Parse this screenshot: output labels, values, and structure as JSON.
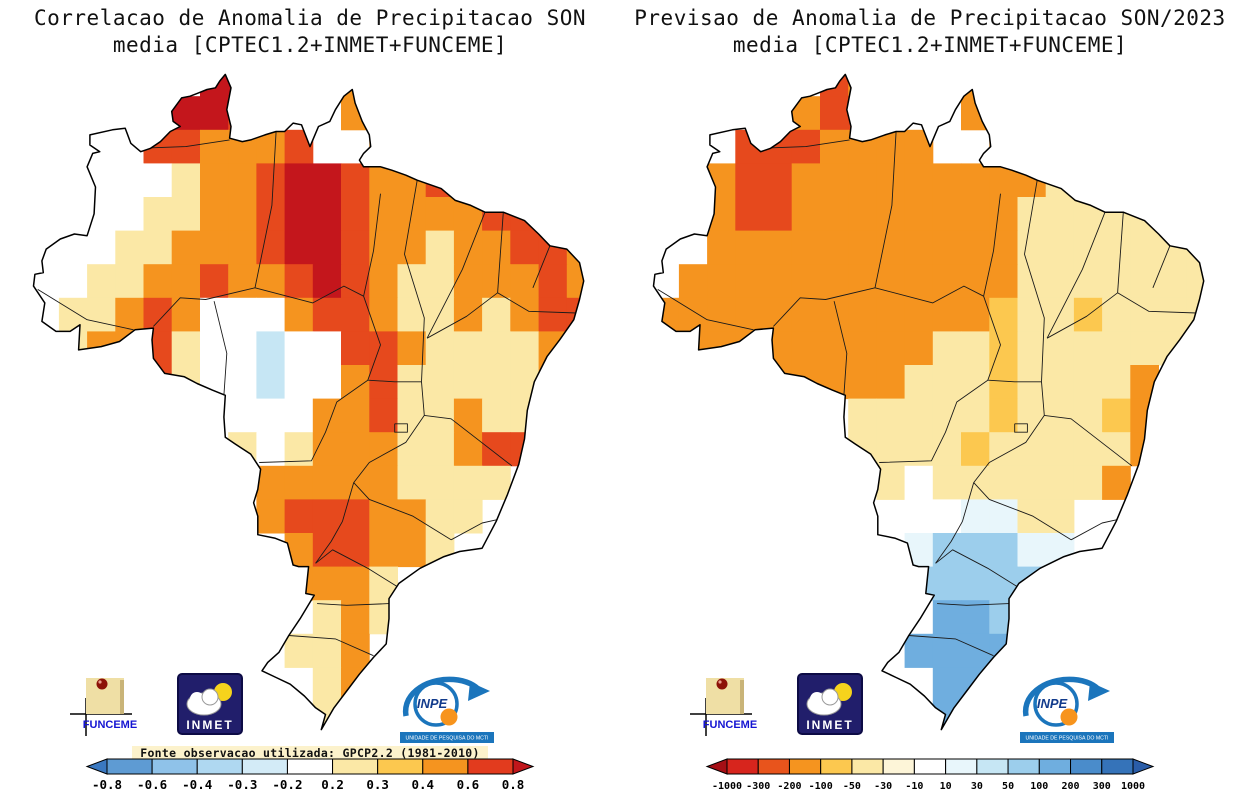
{
  "left": {
    "title_line1": "Correlacao de Anomalia de Precipitacao SON",
    "title_line2": "media [CPTEC1.2+INMET+FUNCEME]",
    "source_note": "Fonte observacao utilizada: GPCP2.2 (1981-2010)",
    "colorbar": {
      "ticks": [
        "-0.8",
        "-0.6",
        "-0.4",
        "-0.3",
        "-0.2",
        "0.2",
        "0.3",
        "0.4",
        "0.6",
        "0.8"
      ],
      "segment_colors": [
        "#5E9BD3",
        "#8FC2E9",
        "#AFD8F1",
        "#D3EBF7",
        "#FFFFFF",
        "#FBE8A6",
        "#FCC84F",
        "#F5941F",
        "#E23B1E"
      ],
      "arrow_left_color": "#3A78C0",
      "arrow_right_color": "#C0161B"
    },
    "grid_rows": [
      "......DD...O........",
      ".....DDRR..OO.......",
      "....RROOOR..OO......",
      "...WWYOORDDROORO....",
      "..WWYYOORDDROOOORRO.",
      "..WYYOOORDDROOYOORRO",
      ".WYYOOROORDROYYOOORO",
      "WYYOROWWWORROYYOYORR",
      "WYOORYWWCWWRROYYYYOR",
      ".YOORYWWCWWORYYYYYO.",
      "..OORYWWWWOORYYOYYO.",
      ".......YWYOOOYYORR..",
      "........OOOOOYYYY...",
      "........ORRROOYY....",
      ".........ORROOY.....",
      ".........OOOY.......",
      "..........YOY.......",
      ".........YYO........",
      "..........YO........",
      "..........Y........."
    ]
  },
  "right": {
    "title_line1": "Previsao de Anomalia de Precipitacao SON/2023",
    "title_line2": "media [CPTEC1.2+INMET+FUNCEME]",
    "colorbar": {
      "ticks": [
        "-1000",
        "-300",
        "-200",
        "-100",
        "-50",
        "-30",
        "-10",
        "10",
        "30",
        "50",
        "100",
        "200",
        "300",
        "1000"
      ],
      "segment_colors": [
        "#D7251D",
        "#E8541C",
        "#F5941F",
        "#FCC84F",
        "#FBE8A6",
        "#FDF5D8",
        "#FFFFFF",
        "#E8F6FB",
        "#C6E6F4",
        "#9CCEEC",
        "#6FAEDF",
        "#4A8CCB",
        "#3573B9"
      ],
      "arrow_left_color": "#A50F15",
      "arrow_right_color": "#2A5DA8"
    },
    "grid_rows": [
      "......RO...O........",
      ".....ORRO..OO.......",
      "...RRROOOO..OO......",
      "..ORROOOOOOOOOY....",
      "..ORROOOOOOOOYYYYYY.",
      "..OOOOOOOOOOOYYYYYYY",
      ".OOOOOOOOOOOOYYYYYYY",
      "OOOOOOOOOOOOGYYGYYYY",
      "OOOOOOOOOOYYGYYYYYY.",
      ".OOOOOOOOYYYGYYYYO..",
      ".......YYYYYGYYYGO..",
      ".......YYYYGYYYYYO..",
      "........YWYYYYYYO...",
      ".........WWPPYY.....",
      ".........PLLLPP.....",
      ".........LLLLL......",
      "..........BBL.......",
      ".........BBBB.......",
      "..........BB........",
      "..........B........."
    ]
  },
  "map": {
    "palette": {
      "W": "#FFFFFF",
      "C": "#C6E6F4",
      "Y": "#FBE8A6",
      "G": "#FCC84F",
      "O": "#F5941F",
      "R": "#E6491D",
      "D": "#C4161C",
      "P": "#E8F6FB",
      "L": "#9CCEEC",
      "B": "#6FAEDF"
    },
    "grid": {
      "lon0": -74,
      "lat0": 6,
      "cell_deg": 2
    },
    "bounds": {
      "lon_min": -74.4,
      "lon_max": -34.0,
      "lat_max": 5.8,
      "lat_min": -34.2
    },
    "outline": [
      [
        -60.2,
        5.3
      ],
      [
        -59.8,
        4.5
      ],
      [
        -60.1,
        3.2
      ],
      [
        -59.8,
        2.2
      ],
      [
        -59.9,
        1.5
      ],
      [
        -59.0,
        1.3
      ],
      [
        -58.4,
        1.4
      ],
      [
        -57.4,
        1.7
      ],
      [
        -56.6,
        1.9
      ],
      [
        -56.0,
        1.9
      ],
      [
        -55.4,
        2.4
      ],
      [
        -54.8,
        2.3
      ],
      [
        -54.2,
        1.0
      ],
      [
        -53.6,
        2.2
      ],
      [
        -52.8,
        2.5
      ],
      [
        -52.4,
        3.2
      ],
      [
        -51.8,
        4.0
      ],
      [
        -51.2,
        4.4
      ],
      [
        -51.0,
        3.6
      ],
      [
        -50.5,
        2.5
      ],
      [
        -50.0,
        1.7
      ],
      [
        -49.9,
        1.0
      ],
      [
        -50.4,
        0.6
      ],
      [
        -50.7,
        0.2
      ],
      [
        -50.4,
        -0.2
      ],
      [
        -49.2,
        -0.2
      ],
      [
        -48.4,
        -0.4
      ],
      [
        -47.4,
        -0.7
      ],
      [
        -46.6,
        -1.0
      ],
      [
        -44.9,
        -1.5
      ],
      [
        -43.9,
        -2.2
      ],
      [
        -42.8,
        -2.5
      ],
      [
        -41.8,
        -2.9
      ],
      [
        -40.5,
        -2.9
      ],
      [
        -39.0,
        -3.4
      ],
      [
        -38.0,
        -4.2
      ],
      [
        -37.2,
        -4.9
      ],
      [
        -36.0,
        -5.1
      ],
      [
        -35.1,
        -5.9
      ],
      [
        -34.8,
        -7.0
      ],
      [
        -35.1,
        -8.1
      ],
      [
        -35.5,
        -9.3
      ],
      [
        -36.5,
        -10.5
      ],
      [
        -37.4,
        -11.5
      ],
      [
        -38.3,
        -13.0
      ],
      [
        -38.8,
        -14.7
      ],
      [
        -39.0,
        -16.4
      ],
      [
        -39.4,
        -17.9
      ],
      [
        -40.2,
        -19.7
      ],
      [
        -41.0,
        -21.3
      ],
      [
        -42.0,
        -22.9
      ],
      [
        -43.6,
        -23.1
      ],
      [
        -44.7,
        -23.4
      ],
      [
        -46.4,
        -24.1
      ],
      [
        -47.9,
        -25.0
      ],
      [
        -48.6,
        -25.9
      ],
      [
        -48.6,
        -27.1
      ],
      [
        -48.8,
        -28.6
      ],
      [
        -49.7,
        -29.4
      ],
      [
        -50.7,
        -30.4
      ],
      [
        -51.6,
        -31.4
      ],
      [
        -52.5,
        -32.4
      ],
      [
        -53.4,
        -33.7
      ],
      [
        -53.1,
        -32.8
      ],
      [
        -53.8,
        -32.4
      ],
      [
        -54.6,
        -31.7
      ],
      [
        -55.6,
        -31.0
      ],
      [
        -56.6,
        -30.6
      ],
      [
        -57.6,
        -30.2
      ],
      [
        -57.2,
        -29.7
      ],
      [
        -56.4,
        -29.1
      ],
      [
        -55.7,
        -28.1
      ],
      [
        -54.9,
        -27.1
      ],
      [
        -53.9,
        -25.7
      ],
      [
        -54.5,
        -25.6
      ],
      [
        -54.4,
        -24.8
      ],
      [
        -54.3,
        -24.0
      ],
      [
        -55.0,
        -24.0
      ],
      [
        -55.4,
        -23.9
      ],
      [
        -55.8,
        -22.6
      ],
      [
        -56.7,
        -22.3
      ],
      [
        -57.9,
        -22.1
      ],
      [
        -57.9,
        -21.0
      ],
      [
        -58.2,
        -20.2
      ],
      [
        -57.9,
        -19.4
      ],
      [
        -57.7,
        -18.2
      ],
      [
        -58.4,
        -17.3
      ],
      [
        -59.5,
        -16.7
      ],
      [
        -60.2,
        -16.3
      ],
      [
        -60.3,
        -15.1
      ],
      [
        -60.2,
        -13.8
      ],
      [
        -61.1,
        -13.5
      ],
      [
        -62.2,
        -13.1
      ],
      [
        -63.1,
        -12.7
      ],
      [
        -64.5,
        -12.5
      ],
      [
        -65.3,
        -11.6
      ],
      [
        -65.4,
        -10.5
      ],
      [
        -65.3,
        -9.8
      ],
      [
        -66.6,
        -9.9
      ],
      [
        -67.7,
        -10.6
      ],
      [
        -69.0,
        -10.9
      ],
      [
        -70.6,
        -11.1
      ],
      [
        -70.5,
        -9.6
      ],
      [
        -71.2,
        -10.0
      ],
      [
        -72.2,
        -10.0
      ],
      [
        -73.2,
        -9.4
      ],
      [
        -73.0,
        -8.3
      ],
      [
        -73.8,
        -7.3
      ],
      [
        -73.7,
        -6.6
      ],
      [
        -73.1,
        -6.5
      ],
      [
        -73.2,
        -5.8
      ],
      [
        -72.9,
        -5.1
      ],
      [
        -71.9,
        -4.5
      ],
      [
        -70.9,
        -4.2
      ],
      [
        -70.0,
        -4.3
      ],
      [
        -69.5,
        -3.0
      ],
      [
        -69.4,
        -1.4
      ],
      [
        -70.0,
        -0.2
      ],
      [
        -69.6,
        0.6
      ],
      [
        -69.1,
        0.7
      ],
      [
        -69.8,
        1.1
      ],
      [
        -69.8,
        1.7
      ],
      [
        -68.2,
        2.0
      ],
      [
        -67.3,
        2.1
      ],
      [
        -66.9,
        1.2
      ],
      [
        -66.2,
        0.7
      ],
      [
        -65.5,
        0.9
      ],
      [
        -64.8,
        1.3
      ],
      [
        -64.1,
        1.9
      ],
      [
        -63.4,
        2.2
      ],
      [
        -63.9,
        2.5
      ],
      [
        -64.0,
        3.1
      ],
      [
        -63.3,
        3.9
      ],
      [
        -62.7,
        4.0
      ],
      [
        -62.1,
        4.2
      ],
      [
        -61.5,
        4.4
      ],
      [
        -60.9,
        4.5
      ],
      [
        -60.6,
        4.9
      ]
    ],
    "state_lines": [
      [
        [
          -66.4,
          0.9
        ],
        [
          -63.0,
          1.0
        ],
        [
          -59.9,
          1.4
        ]
      ],
      [
        [
          -56.6,
          1.9
        ],
        [
          -56.9,
          -2.5
        ],
        [
          -58.1,
          -7.4
        ]
      ],
      [
        [
          -58.1,
          -7.4
        ],
        [
          -61.6,
          -8.1
        ],
        [
          -63.4,
          -8.0
        ],
        [
          -65.3,
          -9.7
        ]
      ],
      [
        [
          -61.0,
          -8.2
        ],
        [
          -60.1,
          -11.3
        ],
        [
          -60.3,
          -13.8
        ]
      ],
      [
        [
          -58.1,
          -7.4
        ],
        [
          -54.0,
          -8.3
        ],
        [
          -51.8,
          -7.3
        ],
        [
          -50.4,
          -7.9
        ]
      ],
      [
        [
          -46.6,
          -1.0
        ],
        [
          -47.5,
          -5.4
        ],
        [
          -46.1,
          -9.2
        ],
        [
          -46.3,
          -13.0
        ]
      ],
      [
        [
          -50.4,
          -7.9
        ],
        [
          -49.7,
          -5.2
        ],
        [
          -49.2,
          -1.8
        ]
      ],
      [
        [
          -50.4,
          -7.9
        ],
        [
          -49.2,
          -10.8
        ],
        [
          -50.1,
          -12.9
        ]
      ],
      [
        [
          -41.8,
          -2.9
        ],
        [
          -43.4,
          -6.3
        ],
        [
          -45.9,
          -10.4
        ]
      ],
      [
        [
          -40.5,
          -2.9
        ],
        [
          -40.9,
          -7.7
        ]
      ],
      [
        [
          -40.9,
          -7.7
        ],
        [
          -43.1,
          -9.1
        ],
        [
          -45.9,
          -10.4
        ]
      ],
      [
        [
          -35.3,
          -8.9
        ],
        [
          -38.7,
          -8.8
        ],
        [
          -40.9,
          -7.7
        ]
      ],
      [
        [
          -37.2,
          -4.9
        ],
        [
          -38.4,
          -7.4
        ]
      ],
      [
        [
          -46.3,
          -13.0
        ],
        [
          -48.2,
          -13.0
        ],
        [
          -50.1,
          -12.9
        ]
      ],
      [
        [
          -46.3,
          -13.0
        ],
        [
          -46.1,
          -15.0
        ],
        [
          -47.4,
          -16.6
        ],
        [
          -50.0,
          -17.8
        ],
        [
          -51.1,
          -19.0
        ]
      ],
      [
        [
          -39.9,
          -18.0
        ],
        [
          -44.2,
          -15.2
        ],
        [
          -46.1,
          -15.0
        ]
      ],
      [
        [
          -50.1,
          -12.9
        ],
        [
          -52.3,
          -14.2
        ],
        [
          -53.1,
          -16.0
        ],
        [
          -54.1,
          -17.7
        ],
        [
          -57.8,
          -17.8
        ]
      ],
      [
        [
          -51.1,
          -19.0
        ],
        [
          -51.9,
          -21.3
        ],
        [
          -52.7,
          -22.5
        ],
        [
          -53.8,
          -23.8
        ]
      ],
      [
        [
          -44.2,
          -22.4
        ],
        [
          -46.9,
          -21.0
        ],
        [
          -50.0,
          -20.0
        ],
        [
          -51.1,
          -19.0
        ]
      ],
      [
        [
          -48.0,
          -25.2
        ],
        [
          -50.1,
          -24.1
        ],
        [
          -52.6,
          -23.0
        ],
        [
          -53.8,
          -23.8
        ]
      ],
      [
        [
          -48.6,
          -26.2
        ],
        [
          -51.6,
          -26.3
        ],
        [
          -53.7,
          -26.2
        ]
      ],
      [
        [
          -49.7,
          -29.3
        ],
        [
          -52.4,
          -28.3
        ],
        [
          -55.7,
          -28.1
        ]
      ],
      [
        [
          -44.2,
          -22.4
        ],
        [
          -42.0,
          -21.4
        ],
        [
          -40.9,
          -21.2
        ]
      ],
      [
        [
          -73.5,
          -7.5
        ],
        [
          -70.0,
          -9.3
        ],
        [
          -66.7,
          -9.9
        ]
      ],
      [
        [
          -48.2,
          -15.5
        ],
        [
          -47.3,
          -15.5
        ],
        [
          -47.3,
          -16.0
        ],
        [
          -48.2,
          -16.0
        ],
        [
          -48.2,
          -15.5
        ]
      ]
    ]
  },
  "logos": {
    "funceme": {
      "label": "FUNCEME",
      "label_color": "#1414D2",
      "square_color": "#EFDFA5",
      "ball_color": "#8C1208"
    },
    "inmet": {
      "label": "INMET",
      "bg_color": "#211E6B",
      "sun_color": "#F6D31C"
    },
    "inpe": {
      "label": "INPE",
      "bar_text": "UNIDADE DE PESQUISA DO MCTI",
      "blue": "#1B75BC",
      "orange": "#F7941D"
    }
  }
}
